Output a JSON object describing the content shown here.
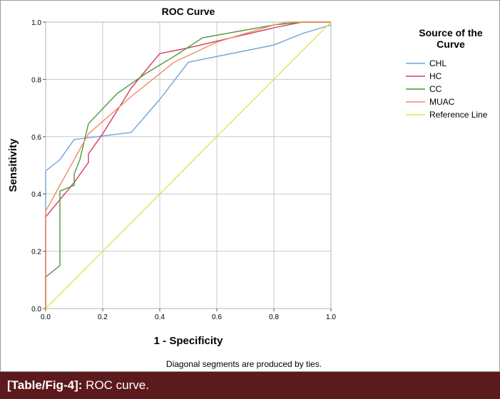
{
  "chart_data": {
    "type": "line",
    "title": "ROC Curve",
    "xlabel": "1 - Specificity",
    "ylabel": "Sensitivity",
    "xlim": [
      0,
      1
    ],
    "ylim": [
      0,
      1
    ],
    "xticks": [
      "0.0",
      "0.2",
      "0.4",
      "0.6",
      "0.8",
      "1.0"
    ],
    "yticks": [
      "0.0",
      "0.2",
      "0.4",
      "0.6",
      "0.8",
      "1.0"
    ],
    "grid": true,
    "legend_title": "Source of the Curve",
    "legend_position": "right",
    "footnote": "Diagonal segments are produced by ties.",
    "series": [
      {
        "name": "CHL",
        "color": "#6fa4d6",
        "points": [
          [
            0,
            0
          ],
          [
            0,
            0.48
          ],
          [
            0.05,
            0.52
          ],
          [
            0.1,
            0.59
          ],
          [
            0.3,
            0.615
          ],
          [
            0.4,
            0.73
          ],
          [
            0.5,
            0.86
          ],
          [
            0.8,
            0.92
          ],
          [
            0.9,
            0.96
          ],
          [
            1,
            0.99
          ]
        ]
      },
      {
        "name": "HC",
        "color": "#d63a5a",
        "points": [
          [
            0,
            0
          ],
          [
            0,
            0.32
          ],
          [
            0.1,
            0.44
          ],
          [
            0.15,
            0.51
          ],
          [
            0.15,
            0.54
          ],
          [
            0.2,
            0.61
          ],
          [
            0.3,
            0.77
          ],
          [
            0.4,
            0.89
          ],
          [
            0.5,
            0.91
          ],
          [
            0.8,
            0.98
          ],
          [
            0.9,
            1
          ],
          [
            1,
            1
          ]
        ]
      },
      {
        "name": "CC",
        "color": "#4c9a3c",
        "points": [
          [
            0,
            0
          ],
          [
            0,
            0.11
          ],
          [
            0.05,
            0.15
          ],
          [
            0.05,
            0.41
          ],
          [
            0.1,
            0.43
          ],
          [
            0.1,
            0.47
          ],
          [
            0.12,
            0.52
          ],
          [
            0.15,
            0.645
          ],
          [
            0.25,
            0.75
          ],
          [
            0.35,
            0.82
          ],
          [
            0.45,
            0.88
          ],
          [
            0.55,
            0.945
          ],
          [
            0.8,
            0.99
          ],
          [
            0.9,
            1
          ],
          [
            1,
            1
          ]
        ]
      },
      {
        "name": "MUAC",
        "color": "#ef8a66",
        "points": [
          [
            0,
            0
          ],
          [
            0,
            0.34
          ],
          [
            0.05,
            0.43
          ],
          [
            0.15,
            0.61
          ],
          [
            0.3,
            0.74
          ],
          [
            0.45,
            0.86
          ],
          [
            0.6,
            0.93
          ],
          [
            0.8,
            0.99
          ],
          [
            0.85,
            1
          ],
          [
            1,
            1
          ]
        ]
      },
      {
        "name": "Reference Line",
        "color": "#e2e25a",
        "points": [
          [
            0,
            0
          ],
          [
            1,
            1
          ]
        ]
      }
    ]
  },
  "caption": {
    "label": "[Table/Fig-4]:",
    "text": " ROC curve."
  },
  "colors": {
    "plot_border": "#b0b0b0",
    "grid": "#c8c8c8",
    "caption_bg": "#5c1a1c"
  }
}
